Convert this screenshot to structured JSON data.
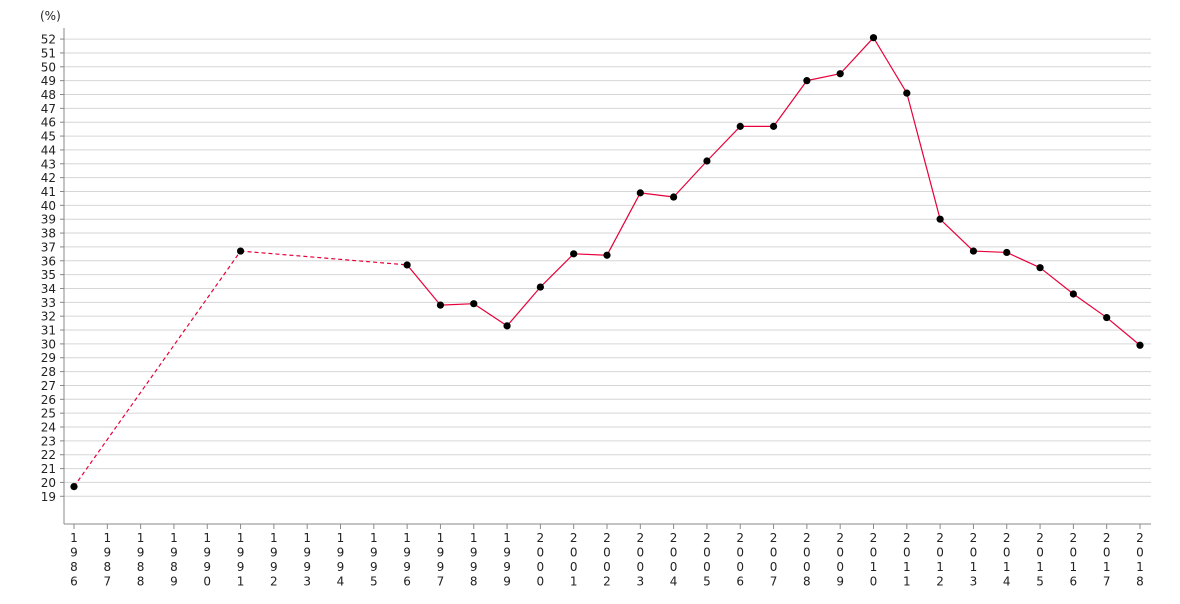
{
  "chart_data": {
    "type": "line",
    "ylabel": "(%)",
    "xlabel": "",
    "ylim": [
      17,
      52.8
    ],
    "y_ticks": [
      19,
      20,
      21,
      22,
      23,
      24,
      25,
      26,
      27,
      28,
      29,
      30,
      31,
      32,
      33,
      34,
      35,
      36,
      37,
      38,
      39,
      40,
      41,
      42,
      43,
      44,
      45,
      46,
      47,
      48,
      49,
      50,
      51,
      52
    ],
    "categories": [
      "1986",
      "1987",
      "1988",
      "1989",
      "1990",
      "1991",
      "1992",
      "1993",
      "1994",
      "1995",
      "1996",
      "1997",
      "1998",
      "1999",
      "2000",
      "2001",
      "2002",
      "2003",
      "2004",
      "2005",
      "2006",
      "2007",
      "2008",
      "2009",
      "2010",
      "2011",
      "2012",
      "2013",
      "2014",
      "2015",
      "2016",
      "2017",
      "2018"
    ],
    "grid": true,
    "legend": "none",
    "series": [
      {
        "color": "#e8003a",
        "marker_color": "#000000",
        "points": [
          {
            "x": "1986",
            "y": 19.7
          },
          {
            "x": "1991",
            "y": 36.7
          },
          {
            "x": "1996",
            "y": 35.7
          },
          {
            "x": "1997",
            "y": 32.8
          },
          {
            "x": "1998",
            "y": 32.9
          },
          {
            "x": "1999",
            "y": 31.3
          },
          {
            "x": "2000",
            "y": 34.1
          },
          {
            "x": "2001",
            "y": 36.5
          },
          {
            "x": "2002",
            "y": 36.4
          },
          {
            "x": "2003",
            "y": 40.9
          },
          {
            "x": "2004",
            "y": 40.6
          },
          {
            "x": "2005",
            "y": 43.2
          },
          {
            "x": "2006",
            "y": 45.7
          },
          {
            "x": "2007",
            "y": 45.7
          },
          {
            "x": "2008",
            "y": 49.0
          },
          {
            "x": "2009",
            "y": 49.5
          },
          {
            "x": "2010",
            "y": 52.1
          },
          {
            "x": "2011",
            "y": 48.1
          },
          {
            "x": "2012",
            "y": 39.0
          },
          {
            "x": "2013",
            "y": 36.7
          },
          {
            "x": "2014",
            "y": 36.6
          },
          {
            "x": "2015",
            "y": 35.5
          },
          {
            "x": "2016",
            "y": 33.6
          },
          {
            "x": "2017",
            "y": 31.9
          },
          {
            "x": "2018",
            "y": 29.9
          }
        ],
        "gap_style": "dashed"
      }
    ]
  }
}
